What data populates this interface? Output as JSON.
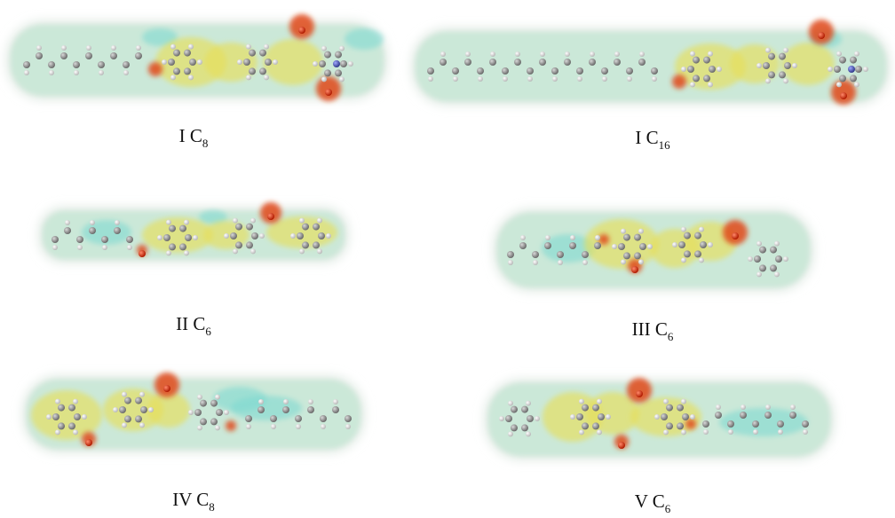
{
  "panels": [
    {
      "label": "I C",
      "subscript": "8"
    },
    {
      "label": "I C",
      "subscript": "16"
    },
    {
      "label": "II C",
      "subscript": "6"
    },
    {
      "label": "III C",
      "subscript": "6"
    },
    {
      "label": "IV C",
      "subscript": "8"
    },
    {
      "label": "V C",
      "subscript": "6"
    }
  ]
}
